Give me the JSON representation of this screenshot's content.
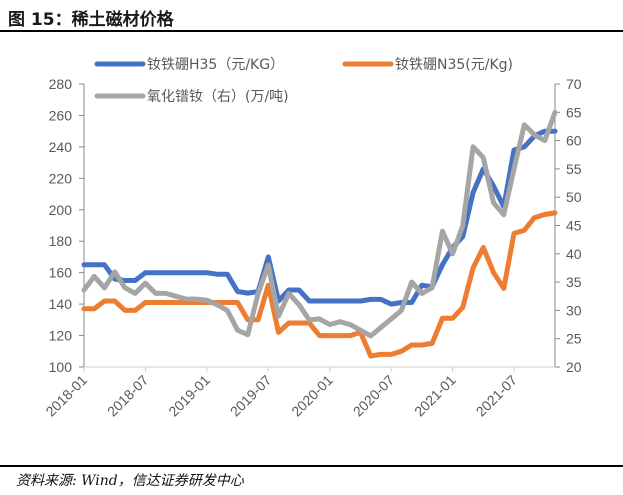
{
  "title": "图 15：稀土磁材价格",
  "source": "资料来源: Wind，信达证券研发中心",
  "chart_data": {
    "type": "line",
    "title": "",
    "xlabel": "",
    "ylabel": "",
    "x": [
      "2018-01",
      "2018-02",
      "2018-03",
      "2018-04",
      "2018-05",
      "2018-06",
      "2018-07",
      "2018-08",
      "2018-09",
      "2018-10",
      "2018-11",
      "2018-12",
      "2019-01",
      "2019-02",
      "2019-03",
      "2019-04",
      "2019-05",
      "2019-06",
      "2019-07",
      "2019-08",
      "2019-09",
      "2019-10",
      "2019-11",
      "2019-12",
      "2020-01",
      "2020-02",
      "2020-03",
      "2020-04",
      "2020-05",
      "2020-06",
      "2020-07",
      "2020-08",
      "2020-09",
      "2020-10",
      "2020-11",
      "2020-12",
      "2021-01",
      "2021-02",
      "2021-03",
      "2021-04",
      "2021-05",
      "2021-06",
      "2021-07",
      "2021-08",
      "2021-09",
      "2021-10",
      "2021-11"
    ],
    "x_ticks": [
      "2018-01",
      "2018-07",
      "2019-01",
      "2019-07",
      "2020-01",
      "2020-07",
      "2021-01",
      "2021-07"
    ],
    "y_left": {
      "lim": [
        100,
        280
      ],
      "ticks": [
        100,
        120,
        140,
        160,
        180,
        200,
        220,
        240,
        260,
        280
      ]
    },
    "y_right": {
      "lim": [
        20,
        70
      ],
      "ticks": [
        20,
        25,
        30,
        35,
        40,
        45,
        50,
        55,
        60,
        65,
        70
      ]
    },
    "grid": false,
    "legend_placement": "top",
    "series": [
      {
        "name": "钕铁硼H35（元/KG）",
        "axis": "left",
        "color": "#4472C4",
        "values": [
          165,
          165,
          165,
          156,
          155,
          155,
          160,
          160,
          160,
          160,
          160,
          160,
          160,
          159,
          159,
          148,
          147,
          148,
          170,
          142,
          149,
          149,
          142,
          142,
          142,
          142,
          142,
          142,
          143,
          143,
          140,
          141,
          141,
          152,
          151,
          165,
          176,
          183,
          211,
          226,
          215,
          202,
          238,
          240,
          247,
          250,
          250
        ]
      },
      {
        "name": "钕铁硼N35(元/Kg)",
        "axis": "left",
        "color": "#ED7D31",
        "values": [
          137,
          137,
          142,
          142,
          136,
          136,
          141,
          141,
          141,
          141,
          141,
          141,
          141,
          141,
          141,
          141,
          130,
          130,
          152,
          122,
          128,
          128,
          128,
          120,
          120,
          120,
          120,
          122,
          107,
          108,
          108,
          110,
          114,
          114,
          115,
          131,
          131,
          138,
          163,
          176,
          160,
          150,
          185,
          187,
          195,
          197,
          198
        ]
      },
      {
        "name": "氧化镨钕（右）(万/吨)",
        "axis": "right",
        "color": "#A5A5A5",
        "values": [
          33.6,
          36,
          34,
          36.8,
          34,
          33,
          34.8,
          33,
          33,
          32.5,
          32,
          32,
          31.8,
          31,
          30,
          26.5,
          25.7,
          33,
          38,
          29,
          33,
          31,
          28.3,
          28.5,
          27.5,
          28,
          27.5,
          26.5,
          25.5,
          27,
          28.5,
          30,
          35,
          33,
          34,
          44,
          40,
          45,
          58.9,
          57,
          49,
          46.9,
          55,
          62.8,
          61,
          60,
          65
        ]
      }
    ]
  }
}
